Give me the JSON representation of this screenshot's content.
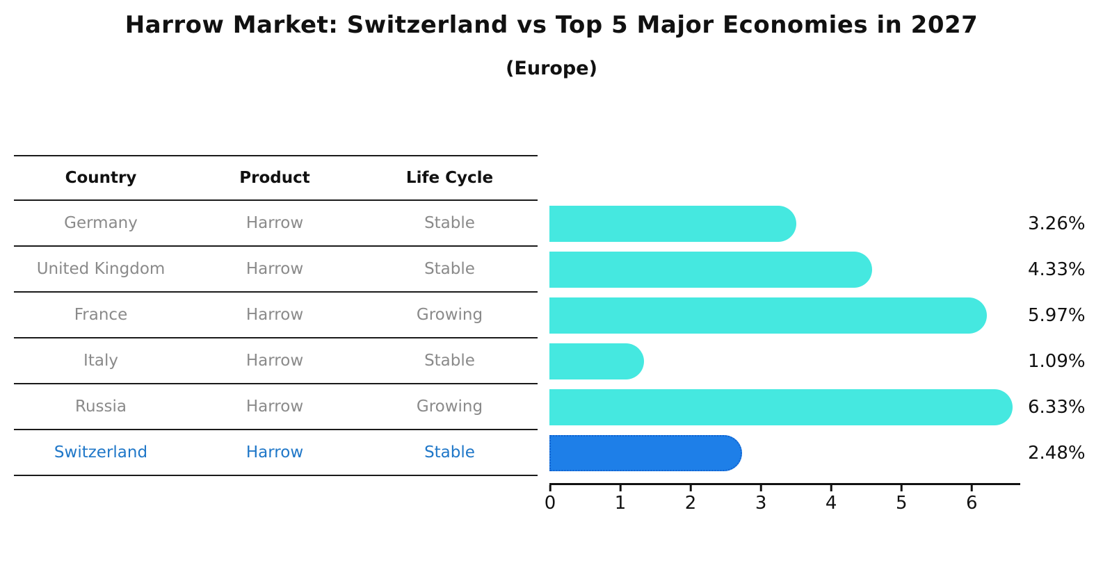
{
  "title": "Harrow Market: Switzerland vs Top 5 Major Economies in 2027",
  "subtitle": "(Europe)",
  "table": {
    "headers": [
      "Country",
      "Product",
      "Life Cycle"
    ],
    "rows": [
      {
        "country": "Germany",
        "product": "Harrow",
        "life_cycle": "Stable",
        "highlight": false
      },
      {
        "country": "United Kingdom",
        "product": "Harrow",
        "life_cycle": "Stable",
        "highlight": false
      },
      {
        "country": "France",
        "product": "Harrow",
        "life_cycle": "Growing",
        "highlight": false
      },
      {
        "country": "Italy",
        "product": "Harrow",
        "life_cycle": "Stable",
        "highlight": false
      },
      {
        "country": "Russia",
        "product": "Harrow",
        "life_cycle": "Growing",
        "highlight": false
      },
      {
        "country": "Switzerland",
        "product": "Harrow",
        "life_cycle": "Stable",
        "highlight": true
      }
    ]
  },
  "chart_data": {
    "type": "bar",
    "orientation": "horizontal",
    "title": "Harrow Market: Switzerland vs Top 5 Major Economies in 2027",
    "subtitle": "(Europe)",
    "categories": [
      "Germany",
      "United Kingdom",
      "France",
      "Italy",
      "Russia",
      "Switzerland"
    ],
    "values": [
      3.26,
      4.33,
      5.97,
      1.09,
      6.33,
      2.48
    ],
    "value_labels": [
      "3.26%",
      "4.33%",
      "5.97%",
      "1.09%",
      "6.33%",
      "2.48%"
    ],
    "xlabel": "",
    "ylabel": "",
    "xlim": [
      0,
      6.7
    ],
    "x_ticks": [
      "0",
      "1",
      "2",
      "3",
      "4",
      "5",
      "6"
    ],
    "grid": false,
    "legend": false,
    "highlight_index": 5,
    "colors": {
      "bar_default": "#45e8e0",
      "bar_highlight": "#1e7fe8",
      "bar_highlight_border": "#1263cf",
      "highlight_text": "#1f77c8",
      "row_text": "#8a8a8a",
      "header_text": "#111111",
      "axis_text": "#111111"
    }
  }
}
